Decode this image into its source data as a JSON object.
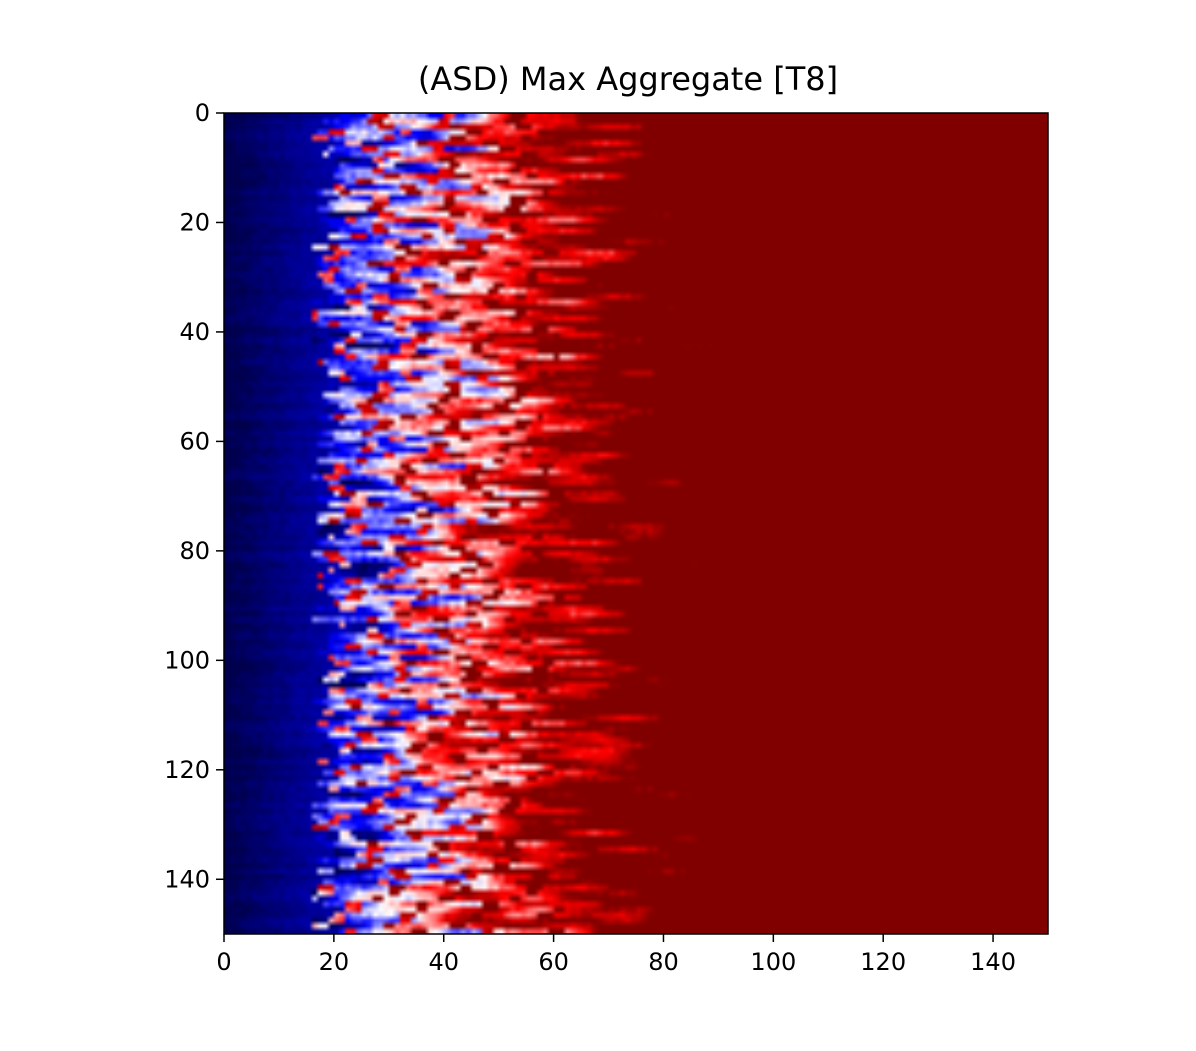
{
  "chart_data": {
    "type": "heatmap",
    "title": "(ASD) Max Aggregate [T8]",
    "xlabel": "",
    "ylabel": "",
    "xlim": [
      0,
      150
    ],
    "ylim": [
      150,
      0
    ],
    "x_ticks": [
      0,
      20,
      40,
      60,
      80,
      100,
      120,
      140
    ],
    "y_ticks": [
      0,
      20,
      40,
      60,
      80,
      100,
      120,
      140
    ],
    "x_tick_labels": [
      "0",
      "20",
      "40",
      "60",
      "80",
      "100",
      "120",
      "140"
    ],
    "y_tick_labels": [
      "0",
      "20",
      "40",
      "60",
      "80",
      "100",
      "120",
      "140"
    ],
    "grid": false,
    "colormap": "seismic",
    "colormap_stops": [
      "#00004d",
      "#0000ff",
      "#ffffff",
      "#ff0000",
      "#800000"
    ],
    "rows": 150,
    "cols": 150,
    "description_of_pattern": {
      "dark_blue_band_x_range": [
        0,
        18
      ],
      "blue_white_transition_x_range": [
        18,
        60
      ],
      "red_region_x_range": [
        60,
        150
      ]
    }
  }
}
